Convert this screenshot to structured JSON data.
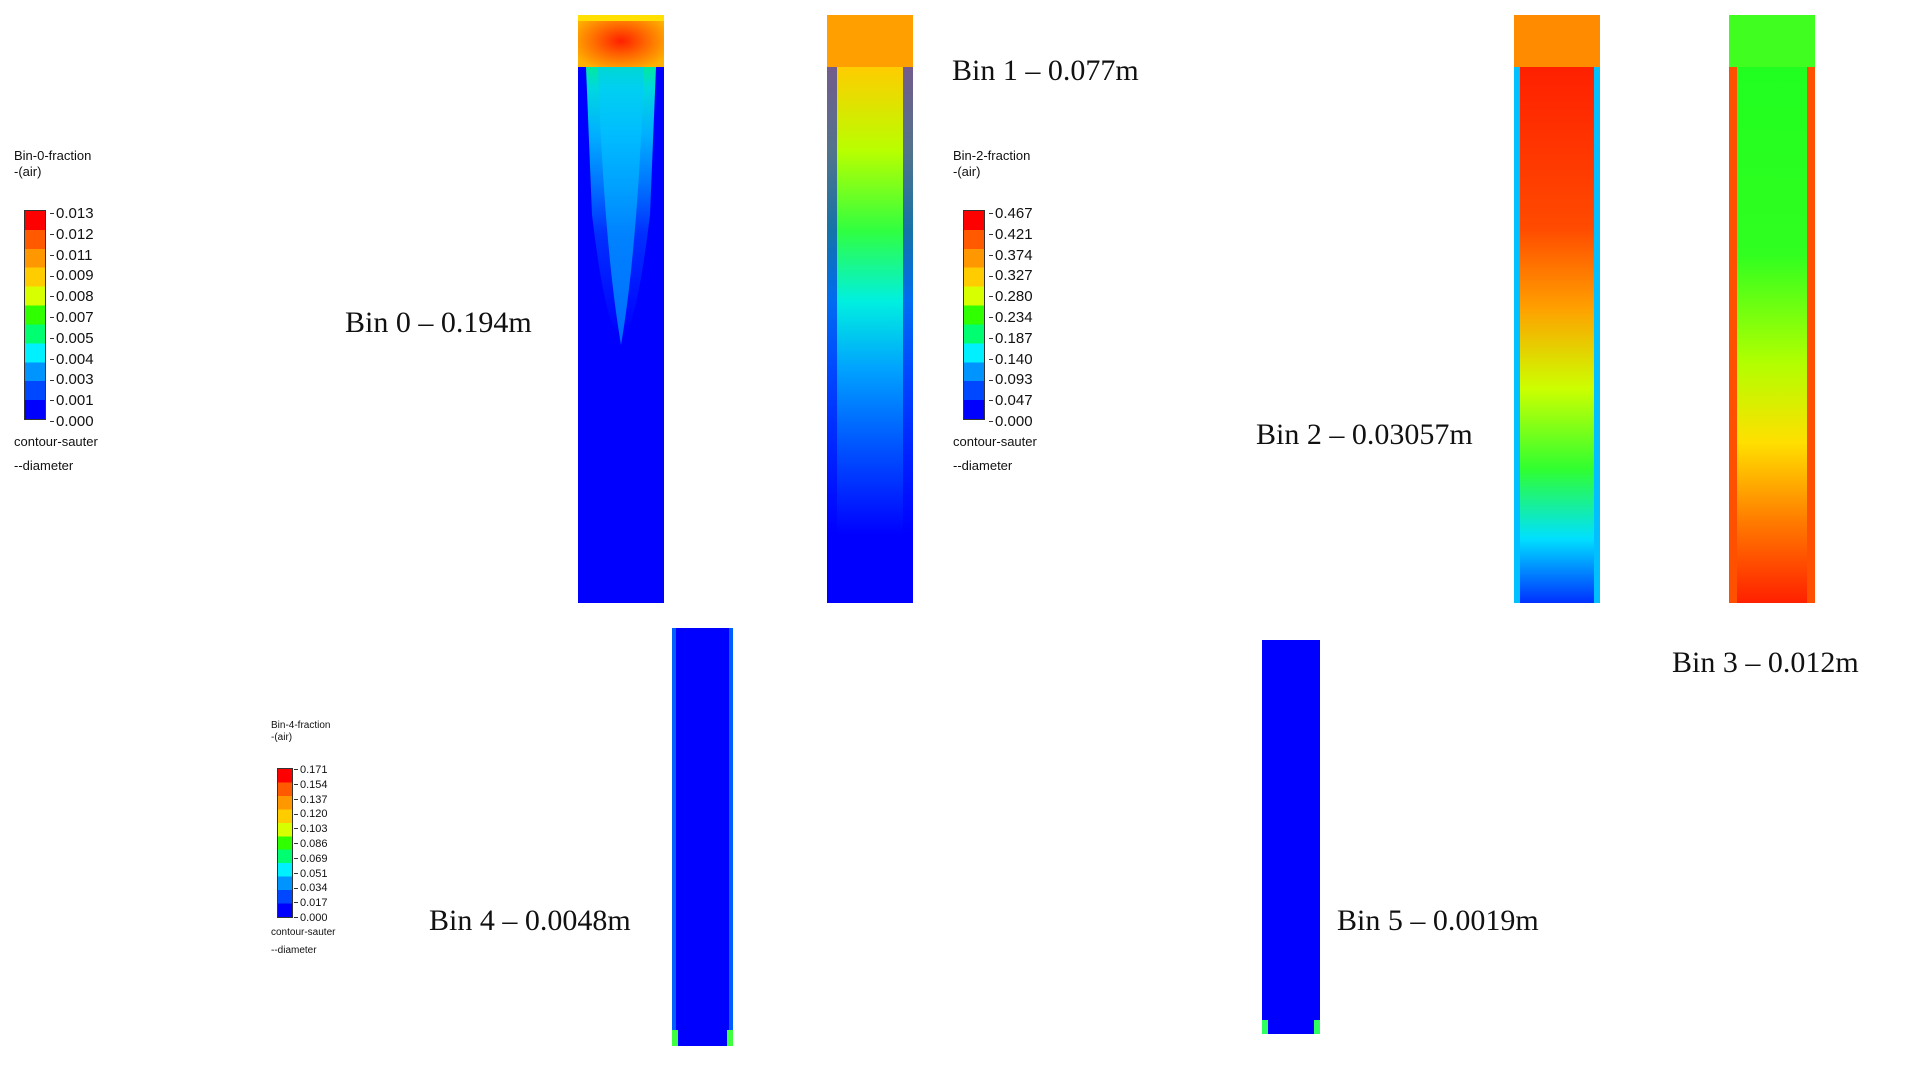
{
  "captions": {
    "bin0": "Bin 0 – 0.194m",
    "bin1": "Bin 1 – 0.077m",
    "bin2": "Bin 2 – 0.03057m",
    "bin3": "Bin 3 – 0.012m",
    "bin4": "Bin 4 – 0.0048m",
    "bin5": "Bin 5 – 0.0019m"
  },
  "legends": {
    "bin0": {
      "title": "Bin-0-fraction\n-(air)",
      "ticks": [
        "0.013",
        "0.012",
        "0.011",
        "0.009",
        "0.008",
        "0.007",
        "0.005",
        "0.004",
        "0.003",
        "0.001",
        "0.000"
      ],
      "footer": "contour-sauter\n--diameter"
    },
    "bin2": {
      "title": "Bin-2-fraction\n-(air)",
      "ticks": [
        "0.467",
        "0.421",
        "0.374",
        "0.327",
        "0.280",
        "0.234",
        "0.187",
        "0.140",
        "0.093",
        "0.047",
        "0.000"
      ],
      "footer": "contour-sauter\n--diameter"
    },
    "bin4": {
      "title": "Bin-4-fraction\n-(air)",
      "ticks": [
        "0.171",
        "0.154",
        "0.137",
        "0.120",
        "0.103",
        "0.086",
        "0.069",
        "0.051",
        "0.034",
        "0.017",
        "0.000"
      ],
      "footer": "contour-sauter\n--diameter"
    }
  },
  "colorscale": [
    "#ff0000",
    "#ff5a00",
    "#ff9800",
    "#ffcc00",
    "#d8ff00",
    "#30ff00",
    "#00ff70",
    "#00f0ff",
    "#0094ff",
    "#0048ff",
    "#0000ff"
  ]
}
